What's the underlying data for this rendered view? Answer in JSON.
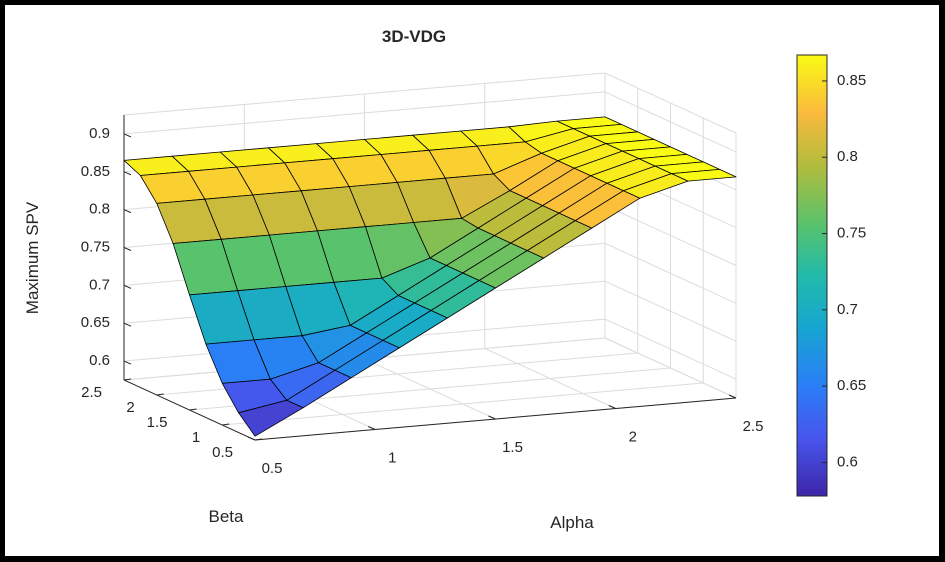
{
  "chart_data": {
    "type": "surface",
    "title": "3D-VDG",
    "xlabel": "Alpha",
    "ylabel": "Beta",
    "zlabel": "Maximum SPV",
    "xlim": [
      0.5,
      2.5
    ],
    "ylim": [
      0.5,
      2.5
    ],
    "zlim": [
      0.575,
      0.925
    ],
    "x_ticks": [
      "0.5",
      "1",
      "1.5",
      "2",
      "2.5"
    ],
    "y_ticks": [
      "0.5",
      "1",
      "1.5",
      "2",
      "2.5"
    ],
    "z_ticks": [
      "0.6",
      "0.65",
      "0.7",
      "0.75",
      "0.8",
      "0.85",
      "0.9"
    ],
    "grid": true,
    "colormap": "parula",
    "colorbar": {
      "range": [
        0.578,
        0.867
      ],
      "ticks": [
        "0.6",
        "0.65",
        "0.7",
        "0.75",
        "0.8",
        "0.85"
      ],
      "position": "right"
    },
    "alpha": [
      0.5,
      0.7,
      0.9,
      1.1,
      1.3,
      1.5,
      1.7,
      1.9,
      2.1,
      2.3,
      2.5
    ],
    "beta": [
      0.5,
      0.75,
      1.0,
      1.25,
      1.5,
      1.75,
      2.0,
      2.25,
      2.5
    ],
    "spv_profile_beta_at_alpha_min": [
      0.58,
      0.601,
      0.63,
      0.672,
      0.727,
      0.785,
      0.828,
      0.855,
      0.865
    ],
    "spv_ridge_alpha_at_beta_min": [
      0.578,
      0.612,
      0.646,
      0.68,
      0.714,
      0.748,
      0.782,
      0.816,
      0.85,
      0.867,
      0.867
    ]
  }
}
